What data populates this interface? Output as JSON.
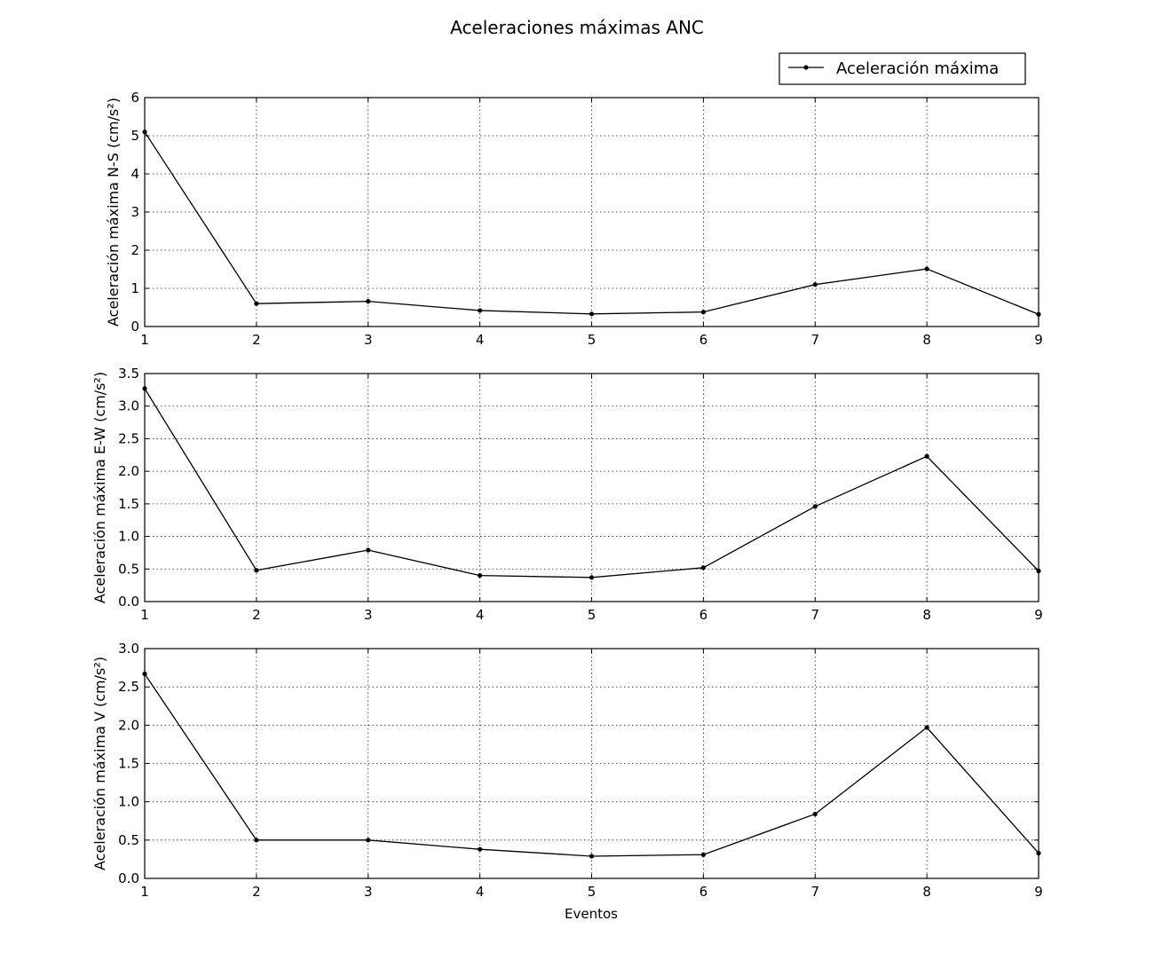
{
  "title": "Aceleraciones máximas ANC",
  "legend": {
    "label": "Aceleración máxima",
    "position": "top-right"
  },
  "xlabel": "Eventos",
  "chart_data": [
    {
      "type": "line",
      "title": "Aceleraciones máximas ANC",
      "xlabel": "",
      "ylabel": "Aceleración máxima N-S (cm/s²)",
      "xlim": [
        1,
        9
      ],
      "ylim": [
        0,
        6
      ],
      "grid": true,
      "xticks": [
        "1",
        "2",
        "3",
        "4",
        "5",
        "6",
        "7",
        "8",
        "9"
      ],
      "yticks": [
        "0",
        "1",
        "2",
        "3",
        "4",
        "5",
        "6"
      ],
      "x": [
        1,
        2,
        3,
        4,
        5,
        6,
        7,
        8,
        9
      ],
      "series": [
        {
          "name": "Aceleración máxima",
          "values": [
            5.1,
            0.6,
            0.66,
            0.42,
            0.33,
            0.38,
            1.1,
            1.51,
            0.32
          ]
        }
      ]
    },
    {
      "type": "line",
      "xlabel": "",
      "ylabel": "Aceleración máxima E-W (cm/s²)",
      "xlim": [
        1,
        9
      ],
      "ylim": [
        0,
        3.5
      ],
      "grid": true,
      "xticks": [
        "1",
        "2",
        "3",
        "4",
        "5",
        "6",
        "7",
        "8",
        "9"
      ],
      "yticks": [
        "0.0",
        "0.5",
        "1.0",
        "1.5",
        "2.0",
        "2.5",
        "3.0",
        "3.5"
      ],
      "x": [
        1,
        2,
        3,
        4,
        5,
        6,
        7,
        8,
        9
      ],
      "series": [
        {
          "name": "Aceleración máxima",
          "values": [
            3.27,
            0.48,
            0.79,
            0.4,
            0.37,
            0.52,
            1.46,
            2.23,
            0.47
          ]
        }
      ]
    },
    {
      "type": "line",
      "xlabel": "Eventos",
      "ylabel": "Aceleración máxima V (cm/s²)",
      "xlim": [
        1,
        9
      ],
      "ylim": [
        0,
        3.0
      ],
      "grid": true,
      "xticks": [
        "1",
        "2",
        "3",
        "4",
        "5",
        "6",
        "7",
        "8",
        "9"
      ],
      "yticks": [
        "0.0",
        "0.5",
        "1.0",
        "1.5",
        "2.0",
        "2.5",
        "3.0"
      ],
      "x": [
        1,
        2,
        3,
        4,
        5,
        6,
        7,
        8,
        9
      ],
      "series": [
        {
          "name": "Aceleración máxima",
          "values": [
            2.67,
            0.5,
            0.5,
            0.38,
            0.29,
            0.31,
            0.84,
            1.97,
            0.33
          ]
        }
      ]
    }
  ]
}
